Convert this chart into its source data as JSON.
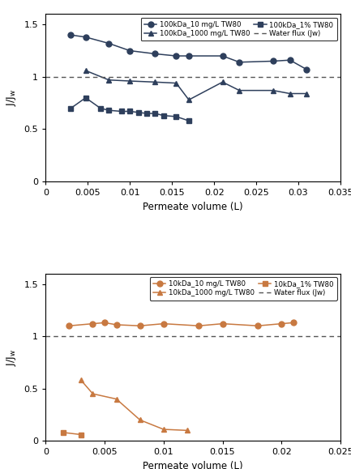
{
  "top": {
    "series_10mg": {
      "label": "100kDa_10 mg/L TW80",
      "x": [
        0.003,
        0.00475,
        0.0075,
        0.01,
        0.013,
        0.0155,
        0.017,
        0.021,
        0.023,
        0.027,
        0.029,
        0.031
      ],
      "y": [
        1.4,
        1.38,
        1.32,
        1.25,
        1.22,
        1.2,
        1.2,
        1.2,
        1.14,
        1.15,
        1.16,
        1.07
      ],
      "color": "#2e3f5c",
      "marker": "o",
      "markersize": 5
    },
    "series_1000mg": {
      "label": "100kDa_1000 mg/L TW80",
      "x": [
        0.00475,
        0.0075,
        0.01,
        0.013,
        0.0155,
        0.017,
        0.021,
        0.023,
        0.027,
        0.029,
        0.031
      ],
      "y": [
        1.06,
        0.97,
        0.96,
        0.95,
        0.94,
        0.78,
        0.95,
        0.87,
        0.87,
        0.84,
        0.84
      ],
      "color": "#2e3f5c",
      "marker": "^",
      "markersize": 5
    },
    "series_1pct": {
      "label": "100kDa_1% TW80",
      "x": [
        0.003,
        0.00475,
        0.0065,
        0.0075,
        0.009,
        0.01,
        0.011,
        0.012,
        0.013,
        0.014,
        0.0155,
        0.017
      ],
      "y": [
        0.7,
        0.8,
        0.7,
        0.68,
        0.67,
        0.67,
        0.66,
        0.65,
        0.65,
        0.63,
        0.62,
        0.58
      ],
      "color": "#2e3f5c",
      "marker": "s",
      "markersize": 4.5
    },
    "xlabel": "Permeate volume (L)",
    "ylabel": "J/Jw",
    "xlim": [
      0,
      0.035
    ],
    "ylim": [
      0,
      1.6
    ],
    "yticks": [
      0,
      0.5,
      1.0,
      1.5
    ],
    "xticks": [
      0,
      0.005,
      0.01,
      0.015,
      0.02,
      0.025,
      0.03,
      0.035
    ]
  },
  "bottom": {
    "series_10mg": {
      "label": "10kDa_10 mg/L TW80",
      "x": [
        0.002,
        0.004,
        0.005,
        0.006,
        0.008,
        0.01,
        0.013,
        0.015,
        0.018,
        0.02,
        0.021
      ],
      "y": [
        1.1,
        1.12,
        1.13,
        1.11,
        1.1,
        1.12,
        1.1,
        1.12,
        1.1,
        1.12,
        1.13
      ],
      "color": "#c87941",
      "marker": "o",
      "markersize": 5
    },
    "series_1000mg": {
      "label": "10kDa_1000 mg/L TW80",
      "x": [
        0.003,
        0.004,
        0.006,
        0.008,
        0.01,
        0.012
      ],
      "y": [
        0.58,
        0.45,
        0.4,
        0.2,
        0.11,
        0.1
      ],
      "color": "#c87941",
      "marker": "^",
      "markersize": 5
    },
    "series_1pct": {
      "label": "10kDa_1% TW80",
      "x": [
        0.0015,
        0.003
      ],
      "y": [
        0.08,
        0.06
      ],
      "color": "#c87941",
      "marker": "s",
      "markersize": 4.5
    },
    "xlabel": "Permeate volume (L)",
    "ylabel": "J/Jw",
    "xlim": [
      0,
      0.025
    ],
    "ylim": [
      0,
      1.6
    ],
    "yticks": [
      0,
      0.5,
      1.0,
      1.5
    ],
    "xticks": [
      0,
      0.005,
      0.01,
      0.015,
      0.02,
      0.025
    ]
  },
  "water_flux_label": "Water flux (Jw)",
  "dashes": [
    4,
    3
  ],
  "background_color": "#ffffff"
}
